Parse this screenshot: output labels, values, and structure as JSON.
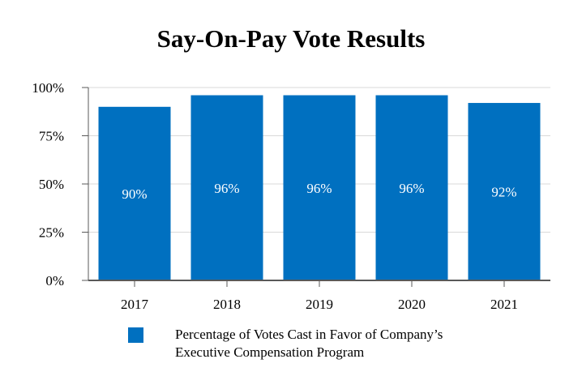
{
  "chart_data": {
    "type": "bar",
    "title": "Say-On-Pay Vote Results",
    "categories": [
      "2017",
      "2018",
      "2019",
      "2020",
      "2021"
    ],
    "values": [
      90,
      96,
      96,
      96,
      92
    ],
    "data_labels": [
      "90%",
      "96%",
      "96%",
      "96%",
      "92%"
    ],
    "ylim": [
      0,
      100
    ],
    "yticks": [
      0,
      25,
      50,
      75,
      100
    ],
    "ytick_labels": [
      "0%",
      "25%",
      "50%",
      "75%",
      "100%"
    ],
    "xlabel": "",
    "ylabel": "",
    "grid": true,
    "legend_position": "bottom",
    "series": [
      {
        "name": "Percentage of Votes Cast in Favor of  Company’s Executive Compensation Program",
        "values": [
          90,
          96,
          96,
          96,
          92
        ]
      }
    ],
    "legend_lines": [
      "Percentage of Votes Cast in Favor of  Company’s",
      "Executive Compensation Program"
    ],
    "colors": {
      "bar": "#0070C0",
      "grid": "#D9D9D9",
      "axis": "#595959",
      "label_text": "#FFFFFF"
    }
  }
}
